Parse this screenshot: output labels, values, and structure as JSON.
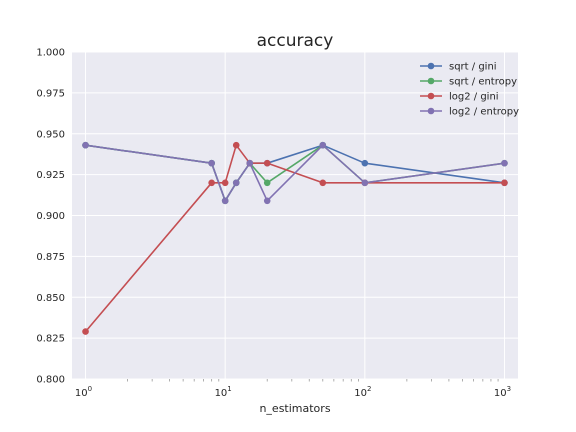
{
  "chart_data": {
    "type": "line",
    "title": "accuracy",
    "xlabel": "n_estimators",
    "ylabel": "",
    "xscale": "log",
    "xlim": [
      0.8,
      1250
    ],
    "ylim": [
      0.8,
      1.0
    ],
    "x_ticks": [
      {
        "value": 1,
        "base": "10",
        "exp": "0"
      },
      {
        "value": 10,
        "base": "10",
        "exp": "1"
      },
      {
        "value": 100,
        "base": "10",
        "exp": "2"
      },
      {
        "value": 1000,
        "base": "10",
        "exp": "3"
      }
    ],
    "y_ticks": [
      "0.800",
      "0.825",
      "0.850",
      "0.875",
      "0.900",
      "0.925",
      "0.950",
      "0.975",
      "1.000"
    ],
    "grid": true,
    "legend_position": "top-right",
    "x": [
      1,
      8,
      10,
      12,
      15,
      20,
      50,
      100,
      1000
    ],
    "series": [
      {
        "name": "sqrt / gini",
        "color": "#4c72b0",
        "values": [
          0.943,
          0.932,
          0.909,
          0.92,
          0.932,
          0.932,
          0.943,
          0.932,
          0.92
        ]
      },
      {
        "name": "sqrt / entropy",
        "color": "#55a868",
        "values": [
          0.943,
          0.932,
          0.909,
          0.92,
          0.932,
          0.92,
          0.943,
          0.92,
          0.932
        ]
      },
      {
        "name": "log2 / gini",
        "color": "#c44e52",
        "values": [
          0.829,
          0.92,
          0.92,
          0.943,
          0.932,
          0.932,
          0.92,
          0.92,
          0.92
        ]
      },
      {
        "name": "log2 / entropy",
        "color": "#8172b2",
        "values": [
          0.943,
          0.932,
          0.909,
          0.92,
          0.932,
          0.909,
          0.943,
          0.92,
          0.932
        ]
      }
    ]
  }
}
